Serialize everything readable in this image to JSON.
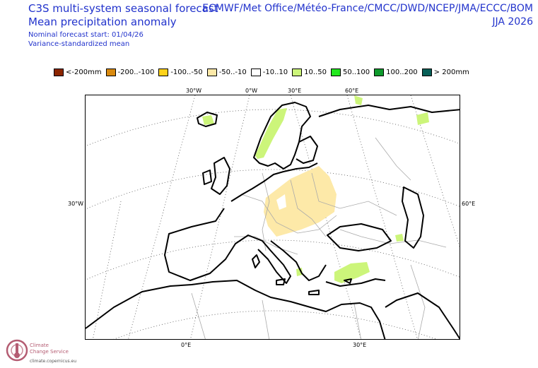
{
  "header": {
    "title_line1": "C3S multi-system seasonal forecast",
    "title_line2": "Mean precipitation anomaly",
    "nominal_start": "Nominal forecast start: 01/04/26",
    "method": "Variance-standardized mean",
    "centres": "ECMWF/Met Office/Météo-France/CMCC/DWD/NCEP/JMA/ECCC/BOM",
    "season": "JJA 2026"
  },
  "legend": [
    {
      "label": "<-200mm",
      "color": "#8b2500"
    },
    {
      "label": "-200..-100",
      "color": "#d98a10"
    },
    {
      "label": "-100..-50",
      "color": "#ffd21a"
    },
    {
      "label": "-50..-10",
      "color": "#fde9a8"
    },
    {
      "label": "-10..10",
      "color": "#ffffff"
    },
    {
      "label": "10..50",
      "color": "#ccf57a"
    },
    {
      "label": "50..100",
      "color": "#22e81e"
    },
    {
      "label": "100..200",
      "color": "#0e9a2c"
    },
    {
      "label": "> 200mm",
      "color": "#075f57"
    }
  ],
  "axes": {
    "top": [
      "30°W",
      "0°W",
      "30°E",
      "60°E"
    ],
    "left": "30°W",
    "right": "60°E",
    "bottom": [
      "0°E",
      "30°E"
    ]
  },
  "logo": {
    "line1": "Climate",
    "line2": "Change Service",
    "url": "climate.copernicus.eu"
  }
}
